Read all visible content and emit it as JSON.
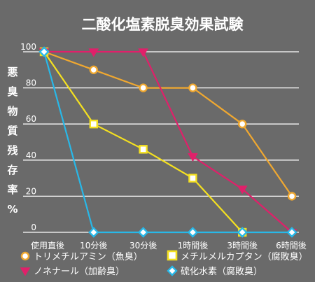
{
  "chart_data": {
    "type": "line",
    "title": "二酸化塩素脱臭効果試験",
    "ylabel": "悪臭物質残存率%",
    "xlabel": "",
    "categories": [
      "使用直後",
      "10分後",
      "30分後",
      "1時間後",
      "3時間後",
      "6時間後"
    ],
    "ylim": [
      0,
      100
    ],
    "yticks": [
      0,
      20,
      40,
      60,
      80,
      100
    ],
    "grid": true,
    "legend_position": "bottom",
    "series": [
      {
        "name": "トリメチルアミン（魚臭）",
        "marker": "circle",
        "color": "#f0a830",
        "x": [
          0,
          1,
          2,
          3,
          4,
          5
        ],
        "values": [
          100,
          90,
          80,
          80,
          60,
          20
        ]
      },
      {
        "name": "メチルメルカプタン（腐敗臭）",
        "marker": "square",
        "color": "#f4e020",
        "x": [
          0,
          1,
          2,
          3,
          4
        ],
        "values": [
          100,
          60,
          46,
          30,
          0
        ]
      },
      {
        "name": "ノネナール（加齢臭）",
        "marker": "triangle",
        "color": "#e0206a",
        "x": [
          0,
          1,
          2,
          3,
          4,
          5
        ],
        "values": [
          100,
          100,
          100,
          42,
          24,
          0
        ]
      },
      {
        "name": "硫化水素（腐敗臭）",
        "marker": "diamond",
        "color": "#28b8e8",
        "x": [
          0,
          1,
          2,
          3,
          4,
          5
        ],
        "values": [
          100,
          0,
          0,
          0,
          0,
          0
        ]
      }
    ]
  }
}
